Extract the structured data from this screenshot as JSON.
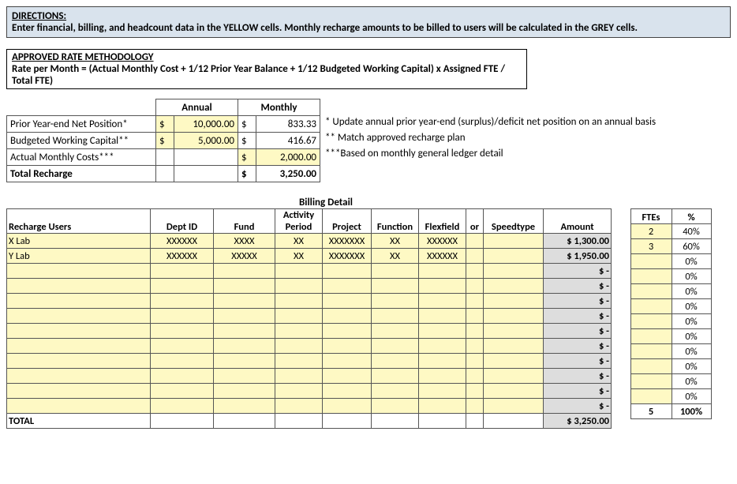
{
  "directions": {
    "heading": "DIRECTIONS:",
    "body": "Enter financial, billing, and headcount data in the YELLOW cells.  Monthly recharge amounts to be billed to users will be calculated in the GREY cells."
  },
  "methodology": {
    "heading": "APPROVED RATE METHODOLOGY",
    "body": "Rate per Month = (Actual Monthly Cost + 1/12 Prior Year Balance + 1/12 Budgeted Working Capital) x Assigned FTE / Total FTE)"
  },
  "summary": {
    "columns": {
      "annual": "Annual",
      "monthly": "Monthly"
    },
    "rows": [
      {
        "label": "Prior Year-end Net Position*",
        "annual_currency": "$",
        "annual_value": "10,000.00",
        "annual_yellow": true,
        "monthly_currency": "$",
        "monthly_value": "833.33",
        "monthly_yellow": false,
        "note": "* Update annual prior year-end (surplus)/deficit net position on an annual basis"
      },
      {
        "label": "Budgeted Working Capital**",
        "annual_currency": "$",
        "annual_value": "5,000.00",
        "annual_yellow": true,
        "monthly_currency": "$",
        "monthly_value": "416.67",
        "monthly_yellow": false,
        "note": "** Match approved recharge plan"
      },
      {
        "label": "Actual Monthly Costs***",
        "annual_currency": "",
        "annual_value": "",
        "annual_yellow": false,
        "monthly_currency": "$",
        "monthly_value": "2,000.00",
        "monthly_yellow": true,
        "note": "***Based on monthly general ledger detail"
      },
      {
        "label": "Total Recharge",
        "annual_currency": "",
        "annual_value": "",
        "annual_yellow": false,
        "monthly_currency": "$",
        "monthly_value": "3,250.00",
        "monthly_yellow": false,
        "bold": true,
        "note": ""
      }
    ]
  },
  "billing": {
    "title": "Billing Detail",
    "columns": {
      "users": "Recharge Users",
      "dept": "Dept ID",
      "fund": "Fund",
      "activity": "Activity Period",
      "project": "Project",
      "function": "Function",
      "flexfield": "Flexfield",
      "or": "or",
      "speedtype": "Speedtype",
      "amount": "Amount",
      "ftes": "FTEs",
      "pct": "%"
    },
    "rows": [
      {
        "user": "X Lab",
        "dept": "XXXXXX",
        "fund": "XXXX",
        "activity": "XX",
        "project": "XXXXXXX",
        "function": "XX",
        "flexfield": "XXXXXX",
        "or": "",
        "speedtype": "",
        "amount": "$ 1,300.00",
        "ftes": "2",
        "pct": "40%"
      },
      {
        "user": "Y Lab",
        "dept": "XXXXXX",
        "fund": "XXXXX",
        "activity": "XX",
        "project": "XXXXXXX",
        "function": "XX",
        "flexfield": "XXXXXX",
        "or": "",
        "speedtype": "",
        "amount": "$ 1,950.00",
        "ftes": "3",
        "pct": "60%"
      },
      {
        "user": "",
        "dept": "",
        "fund": "",
        "activity": "",
        "project": "",
        "function": "",
        "flexfield": "",
        "or": "",
        "speedtype": "",
        "amount": "$        -",
        "ftes": "",
        "pct": "0%"
      },
      {
        "user": "",
        "dept": "",
        "fund": "",
        "activity": "",
        "project": "",
        "function": "",
        "flexfield": "",
        "or": "",
        "speedtype": "",
        "amount": "$        -",
        "ftes": "",
        "pct": "0%"
      },
      {
        "user": "",
        "dept": "",
        "fund": "",
        "activity": "",
        "project": "",
        "function": "",
        "flexfield": "",
        "or": "",
        "speedtype": "",
        "amount": "$        -",
        "ftes": "",
        "pct": "0%"
      },
      {
        "user": "",
        "dept": "",
        "fund": "",
        "activity": "",
        "project": "",
        "function": "",
        "flexfield": "",
        "or": "",
        "speedtype": "",
        "amount": "$        -",
        "ftes": "",
        "pct": "0%"
      },
      {
        "user": "",
        "dept": "",
        "fund": "",
        "activity": "",
        "project": "",
        "function": "",
        "flexfield": "",
        "or": "",
        "speedtype": "",
        "amount": "$        -",
        "ftes": "",
        "pct": "0%"
      },
      {
        "user": "",
        "dept": "",
        "fund": "",
        "activity": "",
        "project": "",
        "function": "",
        "flexfield": "",
        "or": "",
        "speedtype": "",
        "amount": "$        -",
        "ftes": "",
        "pct": "0%"
      },
      {
        "user": "",
        "dept": "",
        "fund": "",
        "activity": "",
        "project": "",
        "function": "",
        "flexfield": "",
        "or": "",
        "speedtype": "",
        "amount": "$        -",
        "ftes": "",
        "pct": "0%"
      },
      {
        "user": "",
        "dept": "",
        "fund": "",
        "activity": "",
        "project": "",
        "function": "",
        "flexfield": "",
        "or": "",
        "speedtype": "",
        "amount": "$        -",
        "ftes": "",
        "pct": "0%"
      },
      {
        "user": "",
        "dept": "",
        "fund": "",
        "activity": "",
        "project": "",
        "function": "",
        "flexfield": "",
        "or": "",
        "speedtype": "",
        "amount": "$        -",
        "ftes": "",
        "pct": "0%"
      },
      {
        "user": "",
        "dept": "",
        "fund": "",
        "activity": "",
        "project": "",
        "function": "",
        "flexfield": "",
        "or": "",
        "speedtype": "",
        "amount": "$        -",
        "ftes": "",
        "pct": "0%"
      }
    ],
    "total": {
      "label": "TOTAL",
      "amount": "$ 3,250.00",
      "ftes": "5",
      "pct": "100%"
    }
  },
  "colors": {
    "yellow": "#fef9c4",
    "grey": "#dddddd",
    "directions_bg": "#d9e3ed"
  }
}
